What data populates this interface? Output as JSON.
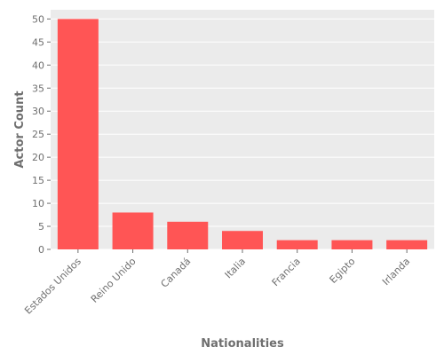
{
  "chart_data": {
    "type": "bar",
    "title": "",
    "xlabel": "Nationalities",
    "ylabel": "Actor Count",
    "categories": [
      "Estados Unidos",
      "Reino Unido",
      "Canadá",
      "Italia",
      "Francia",
      "Egipto",
      "Irlanda"
    ],
    "values": [
      50,
      8,
      6,
      4,
      2,
      2,
      2
    ],
    "ylim": [
      0,
      52
    ],
    "yticks": [
      0,
      5,
      10,
      15,
      20,
      25,
      30,
      35,
      40,
      45,
      50
    ],
    "grid": true,
    "bar_color": "#ff5555",
    "background_color": "#ebebeb",
    "grid_color": "#ffffff"
  }
}
